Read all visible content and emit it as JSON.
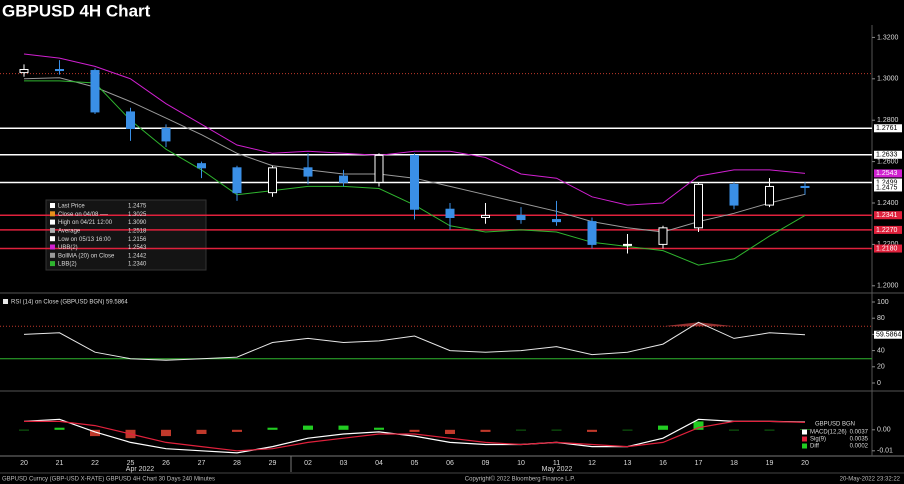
{
  "chart_data": [
    {
      "type": "candlestick",
      "title": "GBPUSD 4H Chart",
      "categories": [
        "20",
        "21",
        "22",
        "25",
        "26",
        "27",
        "28",
        "29",
        "02",
        "03",
        "04",
        "05",
        "06",
        "09",
        "10",
        "11",
        "12",
        "13",
        "16",
        "17",
        "18",
        "19",
        "20"
      ],
      "month_labels": [
        "Apr 2022",
        "May 2022"
      ],
      "open": [
        1.303,
        1.3045,
        1.304,
        1.284,
        1.276,
        1.259,
        1.257,
        1.245,
        1.257,
        1.253,
        1.25,
        1.263,
        1.237,
        1.233,
        1.234,
        1.232,
        1.231,
        1.22,
        1.22,
        1.228,
        1.249,
        1.239,
        1.248
      ],
      "high": [
        1.307,
        1.309,
        1.305,
        1.286,
        1.278,
        1.26,
        1.258,
        1.258,
        1.264,
        1.256,
        1.264,
        1.264,
        1.24,
        1.24,
        1.238,
        1.241,
        1.233,
        1.225,
        1.229,
        1.25,
        1.25,
        1.252,
        1.25
      ],
      "low": [
        1.301,
        1.302,
        1.283,
        1.27,
        1.267,
        1.252,
        1.241,
        1.243,
        1.249,
        1.248,
        1.248,
        1.232,
        1.227,
        1.23,
        1.23,
        1.229,
        1.218,
        1.2156,
        1.218,
        1.226,
        1.237,
        1.238,
        1.244
      ],
      "close": [
        1.3045,
        1.304,
        1.284,
        1.276,
        1.27,
        1.257,
        1.245,
        1.257,
        1.253,
        1.25,
        1.263,
        1.237,
        1.233,
        1.234,
        1.232,
        1.231,
        1.22,
        1.22,
        1.228,
        1.249,
        1.239,
        1.248,
        1.2475
      ],
      "last_label": "1.2475",
      "up_color": "#ffffff",
      "down_color": "#3a8fe6",
      "series": [
        {
          "name": "UBB(2)",
          "color": "#d020d0",
          "end_label": "1.2543",
          "values": [
            1.312,
            1.31,
            1.306,
            1.3,
            1.288,
            1.278,
            1.268,
            1.264,
            1.265,
            1.264,
            1.263,
            1.265,
            1.265,
            1.262,
            1.254,
            1.252,
            1.243,
            1.239,
            1.24,
            1.253,
            1.256,
            1.256,
            1.2543
          ]
        },
        {
          "name": "BollMA (20) on Close",
          "color": "#9a9a9a",
          "values": [
            1.3,
            1.3005,
            1.296,
            1.289,
            1.281,
            1.273,
            1.264,
            1.258,
            1.256,
            1.254,
            1.254,
            1.252,
            1.248,
            1.244,
            1.24,
            1.236,
            1.231,
            1.228,
            1.226,
            1.231,
            1.235,
            1.24,
            1.2442
          ]
        },
        {
          "name": "LBB(2)",
          "color": "#2fb52f",
          "values": [
            1.299,
            1.299,
            1.298,
            1.28,
            1.266,
            1.256,
            1.244,
            1.246,
            1.248,
            1.248,
            1.247,
            1.239,
            1.229,
            1.226,
            1.227,
            1.226,
            1.221,
            1.219,
            1.217,
            1.21,
            1.213,
            1.224,
            1.234
          ]
        }
      ],
      "levels": [
        {
          "value": 1.3025,
          "color": "#c0392b",
          "style": "dotted"
        },
        {
          "value": 1.2761,
          "label": "1.2761",
          "color": "#ffffff"
        },
        {
          "value": 1.2633,
          "label": "1.2633",
          "color": "#ffffff"
        },
        {
          "value": 1.2499,
          "label": "1.2499",
          "color": "#ffffff"
        },
        {
          "value": 1.2341,
          "label": "1.2341",
          "color": "#e0213c"
        },
        {
          "value": 1.227,
          "label": "1.2270",
          "color": "#e0213c"
        },
        {
          "value": 1.218,
          "label": "1.2180",
          "color": "#e0213c"
        }
      ],
      "legend": [
        {
          "text": "Last Price",
          "value": "1.2475",
          "color": "#ffffff"
        },
        {
          "text": "Close on 04/08 ----",
          "value": "1.3025",
          "color": "#e8901c"
        },
        {
          "text": "High on 04/21 12:00",
          "value": "1.3090",
          "color": "#ffffff"
        },
        {
          "text": "Average",
          "value": "1.2518",
          "color": "#b0b0b0"
        },
        {
          "text": "Low on 05/13 16:00",
          "value": "1.2156",
          "color": "#ffffff"
        },
        {
          "text": "UBB(2)",
          "value": "1.2543",
          "color": "#d020d0"
        },
        {
          "text": "BollMA (20) on Close",
          "value": "1.2442",
          "color": "#9a9a9a"
        },
        {
          "text": "LBB(2)",
          "value": "1.2340",
          "color": "#2fb52f"
        }
      ],
      "ylim": [
        1.197,
        1.326
      ],
      "yticks": [
        {
          "value": 1.2,
          "label": "1.2000"
        },
        {
          "value": 1.22,
          "label": "1.2200"
        },
        {
          "value": 1.24,
          "label": "1.2400"
        },
        {
          "value": 1.26,
          "label": "1.2600"
        },
        {
          "value": 1.28,
          "label": "1.2800"
        },
        {
          "value": 1.3,
          "label": "1.3000"
        },
        {
          "value": 1.32,
          "label": "1.3200"
        }
      ]
    },
    {
      "type": "line",
      "title": "RSI (14) on Close (GBPUSD BGN) 59.5864",
      "color": "#e8e8e8",
      "values": [
        60,
        62,
        38,
        30,
        28,
        30,
        32,
        50,
        55,
        50,
        52,
        58,
        40,
        38,
        40,
        45,
        35,
        38,
        48,
        75,
        55,
        62,
        59.5864
      ],
      "end_label": "59.5864",
      "levels": [
        {
          "value": 30,
          "color": "#2fb52f",
          "fill": "#4f8f45"
        },
        {
          "value": 70,
          "color": "#c0392b",
          "fill": "#b03a3a",
          "style": "dotted"
        }
      ],
      "ylim": [
        0,
        100
      ],
      "yticks": [
        0,
        20,
        40,
        60,
        80,
        100
      ]
    },
    {
      "type": "macd",
      "title": "GBPUSD BGN",
      "series": [
        {
          "name": "MACD(12,26)",
          "value_label": "0.0037",
          "color": "#ffffff",
          "values": [
            0.004,
            0.005,
            -0.001,
            -0.006,
            -0.009,
            -0.01,
            -0.011,
            -0.008,
            -0.004,
            -0.002,
            -0.001,
            -0.003,
            -0.006,
            -0.007,
            -0.007,
            -0.006,
            -0.008,
            -0.008,
            -0.004,
            0.005,
            0.004,
            0.004,
            0.0037
          ]
        },
        {
          "name": "Sig(9)",
          "value_label": "0.0035",
          "color": "#e0213c",
          "values": [
            0.004,
            0.004,
            0.002,
            -0.002,
            -0.006,
            -0.008,
            -0.01,
            -0.009,
            -0.006,
            -0.004,
            -0.002,
            -0.002,
            -0.004,
            -0.006,
            -0.007,
            -0.006,
            -0.007,
            -0.008,
            -0.006,
            0.001,
            0.004,
            0.004,
            0.0035
          ]
        },
        {
          "name": "Diff",
          "value_label": "0.0002",
          "color": "#22cc22",
          "negative_color": "#c0392b",
          "values": [
            0,
            0.001,
            -0.003,
            -0.004,
            -0.003,
            -0.002,
            -0.001,
            0.001,
            0.002,
            0.002,
            0.001,
            -0.001,
            -0.002,
            -0.001,
            0,
            0,
            -0.001,
            0,
            0.002,
            0.004,
            0,
            0,
            0.0002
          ]
        }
      ],
      "ylim": [
        -0.012,
        0.018
      ],
      "yticks": [
        {
          "value": 0,
          "label": "0.00"
        },
        {
          "value": -0.01,
          "label": "-0.01"
        }
      ]
    }
  ],
  "footer": {
    "left": "GBPUSD Curncy (GBP-USD X-RATE) GBPUSD 4H Chart 30 Days 240 Minutes",
    "center": "Copyright© 2022 Bloomberg Finance L.P.",
    "right": "20-May-2022 23:32:22"
  }
}
